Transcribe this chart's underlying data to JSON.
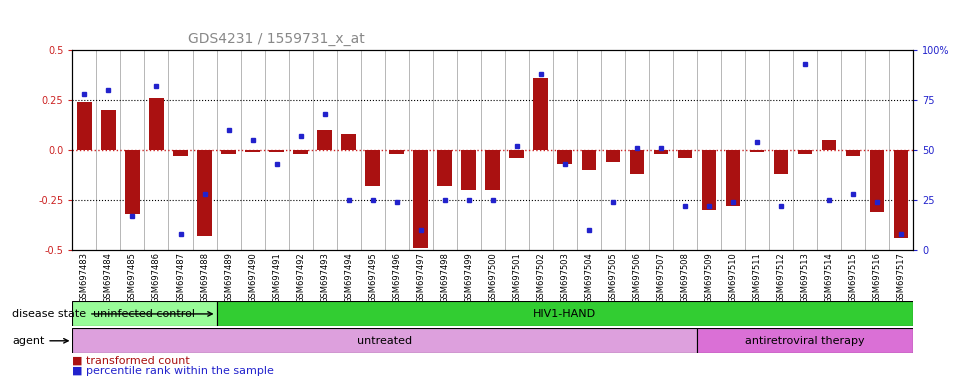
{
  "title": "GDS4231 / 1559731_x_at",
  "samples": [
    "GSM697483",
    "GSM697484",
    "GSM697485",
    "GSM697486",
    "GSM697487",
    "GSM697488",
    "GSM697489",
    "GSM697490",
    "GSM697491",
    "GSM697492",
    "GSM697493",
    "GSM697494",
    "GSM697495",
    "GSM697496",
    "GSM697497",
    "GSM697498",
    "GSM697499",
    "GSM697500",
    "GSM697501",
    "GSM697502",
    "GSM697503",
    "GSM697504",
    "GSM697505",
    "GSM697506",
    "GSM697507",
    "GSM697508",
    "GSM697509",
    "GSM697510",
    "GSM697511",
    "GSM697512",
    "GSM697513",
    "GSM697514",
    "GSM697515",
    "GSM697516",
    "GSM697517"
  ],
  "red_values": [
    0.24,
    0.2,
    -0.32,
    0.26,
    -0.03,
    -0.43,
    -0.02,
    -0.01,
    -0.01,
    -0.02,
    0.1,
    0.08,
    -0.18,
    -0.02,
    -0.49,
    -0.18,
    -0.2,
    -0.2,
    -0.04,
    0.36,
    -0.07,
    -0.1,
    -0.06,
    -0.12,
    -0.02,
    -0.04,
    -0.3,
    -0.28,
    -0.01,
    -0.12,
    -0.02,
    0.05,
    -0.03,
    -0.31,
    -0.44
  ],
  "blue_pct": [
    78,
    80,
    17,
    82,
    8,
    28,
    60,
    55,
    43,
    57,
    68,
    25,
    25,
    24,
    10,
    25,
    25,
    25,
    52,
    88,
    43,
    10,
    24,
    51,
    51,
    22,
    22,
    24,
    54,
    22,
    93,
    25,
    28,
    24,
    8
  ],
  "disease_state_groups": [
    {
      "label": "uninfected control",
      "start": 0,
      "end": 6,
      "color": "#98FB98"
    },
    {
      "label": "HIV1-HAND",
      "start": 6,
      "end": 35,
      "color": "#32CD32"
    }
  ],
  "agent_groups": [
    {
      "label": "untreated",
      "start": 0,
      "end": 26,
      "color": "#DDA0DD"
    },
    {
      "label": "antiretroviral therapy",
      "start": 26,
      "end": 35,
      "color": "#DA70D6"
    }
  ],
  "ylim_left": [
    -0.5,
    0.5
  ],
  "yticks_left": [
    -0.5,
    -0.25,
    0.0,
    0.25,
    0.5
  ],
  "yticks_right": [
    0,
    25,
    50,
    75,
    100
  ],
  "bar_color": "#AA1111",
  "dot_color": "#2222CC",
  "bg_color": "#FFFFFF",
  "title_color": "#888888",
  "hline_color_zero": "#CC2222",
  "hline_color_other": "#000000",
  "title_fontsize": 10,
  "tick_fontsize": 7,
  "label_fontsize": 8
}
